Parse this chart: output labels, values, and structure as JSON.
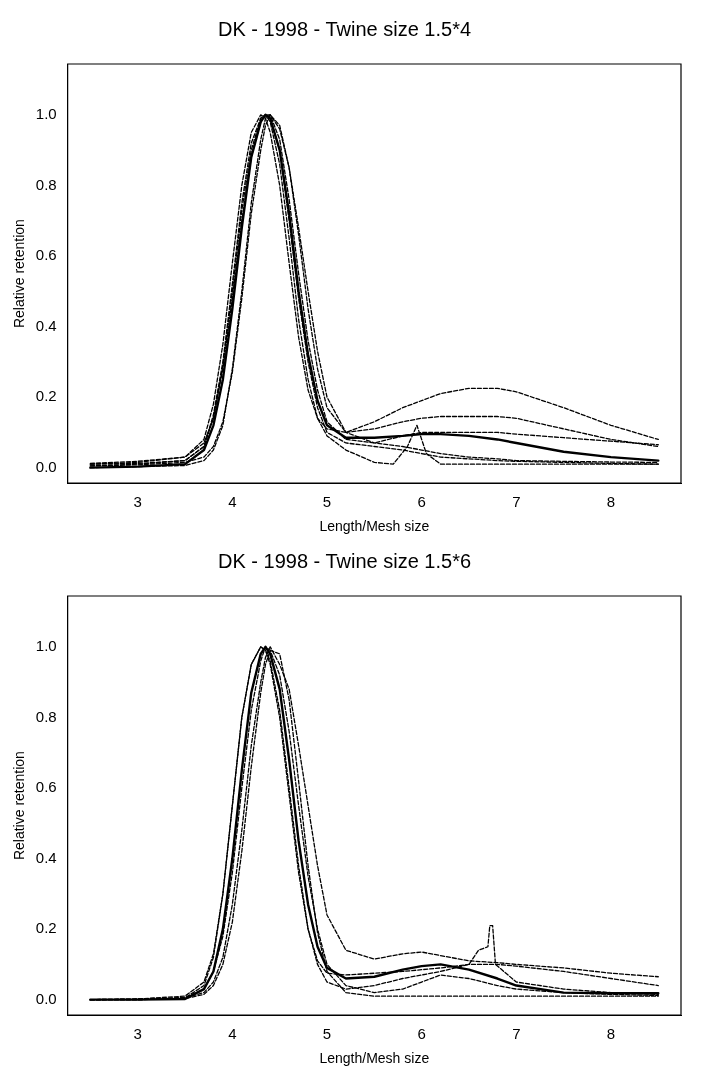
{
  "chart_data": [
    {
      "type": "line",
      "title": "DK - 1998 - Twine size 1.5*4",
      "xlabel": "Length/Mesh size",
      "ylabel": "Relative retention",
      "x": [
        2.5,
        3,
        3.5,
        3.7,
        3.8,
        3.9,
        4,
        4.1,
        4.2,
        4.3,
        4.35,
        4.4,
        4.5,
        4.6,
        4.7,
        4.8,
        4.9,
        5,
        5.2,
        5.5,
        5.8,
        6,
        6.2,
        6.5,
        6.8,
        7,
        7.5,
        8,
        8.5
      ],
      "xlim": [
        2.26,
        8.74
      ],
      "xticks": [
        3,
        4,
        5,
        6,
        7,
        8
      ],
      "ylim": [
        -0.044,
        1.144
      ],
      "yticks": [
        {
          "value": 0,
          "label": "0.0"
        },
        {
          "value": 0.2,
          "label": "0.2"
        },
        {
          "value": 0.4,
          "label": "0.4"
        },
        {
          "value": 0.6,
          "label": "0.6"
        },
        {
          "value": 0.8,
          "label": "0.8"
        },
        {
          "value": 1,
          "label": "1.0"
        }
      ],
      "grid": false,
      "legend": false,
      "marker": "none",
      "series": [
        {
          "color": "#000000",
          "line_style": "solid",
          "values": [
            0,
            0.003,
            0.01,
            0.05,
            0.12,
            0.25,
            0.45,
            0.68,
            0.88,
            0.98,
            1.0,
            0.99,
            0.9,
            0.72,
            0.5,
            0.32,
            0.19,
            0.12,
            0.085,
            0.085,
            0.09,
            0.095,
            0.095,
            0.09,
            0.08,
            0.07,
            0.045,
            0.03,
            0.02
          ]
        },
        {
          "color": "#000000",
          "line_style": "dashed",
          "values": [
            0.01,
            0.015,
            0.03,
            0.08,
            0.18,
            0.35,
            0.58,
            0.8,
            0.95,
            1.0,
            0.99,
            0.95,
            0.8,
            0.58,
            0.37,
            0.22,
            0.14,
            0.11,
            0.1,
            0.13,
            0.17,
            0.19,
            0.21,
            0.225,
            0.225,
            0.215,
            0.17,
            0.12,
            0.08
          ]
        },
        {
          "color": "#000000",
          "line_style": "dashed",
          "values": [
            0.005,
            0.008,
            0.015,
            0.03,
            0.06,
            0.13,
            0.27,
            0.48,
            0.72,
            0.9,
            0.97,
            1.0,
            0.97,
            0.85,
            0.66,
            0.45,
            0.28,
            0.17,
            0.1,
            0.11,
            0.13,
            0.14,
            0.145,
            0.145,
            0.145,
            0.14,
            0.11,
            0.08,
            0.06
          ]
        },
        {
          "color": "#000000",
          "line_style": "dashed",
          "x": [
            2.5,
            3,
            3.5,
            3.7,
            3.8,
            3.9,
            4,
            4.1,
            4.2,
            4.3,
            4.35,
            4.4,
            4.5,
            4.6,
            4.7,
            4.8,
            4.9,
            5,
            5.2,
            5.5,
            5.7,
            5.85,
            5.95,
            6.05,
            6.2,
            6.5,
            7,
            7.5,
            8,
            8.5
          ],
          "values": [
            0.01,
            0.012,
            0.02,
            0.06,
            0.15,
            0.3,
            0.52,
            0.75,
            0.92,
            0.99,
            1.0,
            0.98,
            0.86,
            0.65,
            0.42,
            0.25,
            0.14,
            0.09,
            0.05,
            0.015,
            0.01,
            0.06,
            0.12,
            0.04,
            0.01,
            0.01,
            0.01,
            0.01,
            0.01,
            0.01
          ]
        },
        {
          "color": "#000000",
          "line_style": "dashed",
          "values": [
            0,
            0.003,
            0.006,
            0.02,
            0.05,
            0.12,
            0.28,
            0.5,
            0.75,
            0.93,
            0.99,
            1.0,
            0.93,
            0.76,
            0.55,
            0.36,
            0.22,
            0.13,
            0.08,
            0.07,
            0.09,
            0.1,
            0.1,
            0.1,
            0.1,
            0.095,
            0.085,
            0.075,
            0.065
          ]
        },
        {
          "color": "#000000",
          "line_style": "dashed",
          "values": [
            0.012,
            0.018,
            0.03,
            0.07,
            0.14,
            0.28,
            0.48,
            0.7,
            0.88,
            0.98,
            1.0,
            1.0,
            0.96,
            0.85,
            0.68,
            0.5,
            0.33,
            0.2,
            0.1,
            0.07,
            0.06,
            0.05,
            0.04,
            0.03,
            0.025,
            0.02,
            0.018,
            0.016,
            0.015
          ]
        },
        {
          "color": "#000000",
          "line_style": "dashed",
          "values": [
            0.005,
            0.01,
            0.02,
            0.06,
            0.14,
            0.29,
            0.5,
            0.73,
            0.9,
            0.99,
            1.0,
            0.99,
            0.9,
            0.7,
            0.48,
            0.3,
            0.17,
            0.1,
            0.07,
            0.06,
            0.05,
            0.04,
            0.03,
            0.025,
            0.02,
            0.018,
            0.015,
            0.012,
            0.01
          ]
        }
      ]
    },
    {
      "type": "line",
      "title": "DK - 1998 - Twine size 1.5*6",
      "xlabel": "Length/Mesh size",
      "ylabel": "Relative retention",
      "x": [
        2.5,
        3,
        3.5,
        3.7,
        3.8,
        3.9,
        4,
        4.1,
        4.2,
        4.3,
        4.35,
        4.4,
        4.5,
        4.6,
        4.7,
        4.8,
        4.9,
        5,
        5.2,
        5.5,
        5.8,
        6,
        6.2,
        6.5,
        6.8,
        7,
        7.5,
        8,
        8.5
      ],
      "xlim": [
        2.26,
        8.74
      ],
      "xticks": [
        3,
        4,
        5,
        6,
        7,
        8
      ],
      "ylim": [
        -0.044,
        1.144
      ],
      "yticks": [
        {
          "value": 0,
          "label": "0.0"
        },
        {
          "value": 0.2,
          "label": "0.2"
        },
        {
          "value": 0.4,
          "label": "0.4"
        },
        {
          "value": 0.6,
          "label": "0.6"
        },
        {
          "value": 0.8,
          "label": "0.8"
        },
        {
          "value": 1,
          "label": "1.0"
        }
      ],
      "grid": false,
      "legend": false,
      "marker": "none",
      "series": [
        {
          "color": "#000000",
          "line_style": "solid",
          "values": [
            0,
            0,
            0.002,
            0.03,
            0.08,
            0.2,
            0.4,
            0.65,
            0.87,
            0.98,
            1.0,
            0.98,
            0.88,
            0.68,
            0.45,
            0.27,
            0.15,
            0.09,
            0.06,
            0.065,
            0.085,
            0.095,
            0.1,
            0.085,
            0.06,
            0.04,
            0.02,
            0.018,
            0.018
          ]
        },
        {
          "color": "#000000",
          "line_style": "dashed",
          "values": [
            0,
            0,
            0.005,
            0.02,
            0.05,
            0.12,
            0.27,
            0.48,
            0.72,
            0.9,
            0.97,
            1.0,
            0.95,
            0.88,
            0.72,
            0.55,
            0.38,
            0.24,
            0.14,
            0.115,
            0.13,
            0.135,
            0.125,
            0.11,
            0.105,
            0.1,
            0.09,
            0.075,
            0.065
          ]
        },
        {
          "color": "#000000",
          "line_style": "dashed",
          "x": [
            2.5,
            3,
            3.5,
            3.7,
            3.8,
            3.9,
            4,
            4.1,
            4.2,
            4.3,
            4.35,
            4.4,
            4.5,
            4.6,
            4.7,
            4.8,
            4.9,
            5,
            5.2,
            5.5,
            5.8,
            6,
            6.2,
            6.5,
            6.6,
            6.7,
            6.72,
            6.75,
            6.78,
            7,
            7.5,
            8,
            8.5
          ],
          "values": [
            0,
            0,
            0.005,
            0.04,
            0.12,
            0.3,
            0.55,
            0.8,
            0.95,
            1.0,
            0.99,
            0.96,
            0.82,
            0.6,
            0.38,
            0.2,
            0.1,
            0.05,
            0.03,
            0.04,
            0.06,
            0.07,
            0.08,
            0.1,
            0.14,
            0.15,
            0.21,
            0.21,
            0.1,
            0.05,
            0.03,
            0.02,
            0.015
          ]
        },
        {
          "color": "#000000",
          "line_style": "dashed",
          "values": [
            0,
            0,
            0.003,
            0.015,
            0.04,
            0.1,
            0.22,
            0.42,
            0.66,
            0.87,
            0.95,
            0.99,
            0.98,
            0.85,
            0.62,
            0.38,
            0.19,
            0.08,
            0.02,
            0.01,
            0.01,
            0.01,
            0.01,
            0.01,
            0.01,
            0.01,
            0.01,
            0.01,
            0.01
          ]
        },
        {
          "color": "#000000",
          "line_style": "dashed",
          "values": [
            0,
            0.002,
            0.01,
            0.05,
            0.13,
            0.3,
            0.55,
            0.8,
            0.95,
            1.0,
            0.99,
            0.95,
            0.8,
            0.58,
            0.36,
            0.2,
            0.11,
            0.075,
            0.07,
            0.075,
            0.08,
            0.085,
            0.09,
            0.1,
            0.1,
            0.095,
            0.08,
            0.06,
            0.04
          ]
        },
        {
          "color": "#000000",
          "line_style": "dashed",
          "values": [
            0,
            0.002,
            0.006,
            0.03,
            0.08,
            0.18,
            0.36,
            0.6,
            0.82,
            0.96,
            1.0,
            0.99,
            0.92,
            0.76,
            0.55,
            0.35,
            0.2,
            0.1,
            0.04,
            0.02,
            0.03,
            0.05,
            0.07,
            0.06,
            0.04,
            0.03,
            0.02,
            0.015,
            0.012
          ]
        }
      ]
    }
  ]
}
